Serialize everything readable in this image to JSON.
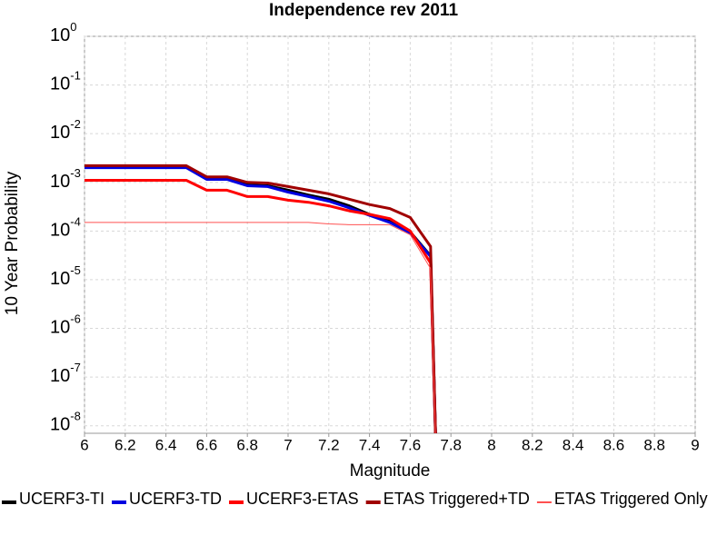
{
  "chart_data": {
    "type": "line",
    "title": "Independence rev 2011",
    "x_label": "Magnitude",
    "y_label": "10 Year Probability",
    "log_y": true,
    "grid": true,
    "legend_position": "bottom",
    "xlim": [
      6,
      9
    ],
    "xticks": [
      6,
      6.2,
      6.4,
      6.6,
      6.8,
      7,
      7.2,
      7.4,
      7.6,
      7.8,
      8,
      8.2,
      8.4,
      8.6,
      8.8,
      9
    ],
    "ylim": [
      7e-09,
      1
    ],
    "yticks": [
      {
        "value": 1,
        "label": "10^0"
      },
      {
        "value": 0.1,
        "label": "10^-1"
      },
      {
        "value": 0.01,
        "label": "10^-2"
      },
      {
        "value": 0.001,
        "label": "10^-3"
      },
      {
        "value": 0.0001,
        "label": "10^-4"
      },
      {
        "value": 1e-05,
        "label": "10^-5"
      },
      {
        "value": 1e-06,
        "label": "10^-6"
      },
      {
        "value": 1e-07,
        "label": "10^-7"
      },
      {
        "value": 1e-08,
        "label": "10^-8"
      }
    ],
    "x": [
      6.0,
      6.1,
      6.2,
      6.3,
      6.4,
      6.5,
      6.6,
      6.7,
      6.8,
      6.9,
      7.0,
      7.1,
      7.2,
      7.3,
      7.4,
      7.5,
      7.6,
      7.7,
      7.73
    ],
    "series": [
      {
        "name": "UCERF3-TI",
        "color": "#000000",
        "line_width": 3,
        "values": [
          0.0021,
          0.0021,
          0.0021,
          0.0021,
          0.0021,
          0.0021,
          0.0012,
          0.0012,
          0.00089,
          0.00085,
          0.00069,
          0.00055,
          0.00045,
          0.00033,
          0.00022,
          0.00017,
          9.6e-05,
          3.1e-05,
          1e-09
        ]
      },
      {
        "name": "UCERF3-TD",
        "color": "#0000e0",
        "line_width": 3,
        "values": [
          0.002,
          0.002,
          0.002,
          0.002,
          0.002,
          0.002,
          0.00115,
          0.00115,
          0.00085,
          0.00082,
          0.00063,
          0.00051,
          0.00041,
          0.0003,
          0.00021,
          0.00015,
          9.2e-05,
          3e-05,
          1e-09
        ]
      },
      {
        "name": "UCERF3-ETAS",
        "color": "#ff0000",
        "line_width": 3,
        "values": [
          0.0011,
          0.0011,
          0.0011,
          0.0011,
          0.0011,
          0.0011,
          0.00069,
          0.00069,
          0.00051,
          0.00051,
          0.00043,
          0.00039,
          0.00033,
          0.00026,
          0.00022,
          0.00018,
          0.0001,
          2.2e-05,
          1e-09
        ]
      },
      {
        "name": "ETAS Triggered+TD",
        "color": "#a00000",
        "line_width": 3,
        "values": [
          0.0022,
          0.0022,
          0.0022,
          0.0022,
          0.0022,
          0.0022,
          0.0013,
          0.0013,
          0.001,
          0.00097,
          0.00082,
          0.00069,
          0.00058,
          0.00045,
          0.00035,
          0.00029,
          0.00019,
          4.8e-05,
          1e-09
        ]
      },
      {
        "name": "ETAS Triggered Only",
        "color": "#ff5050",
        "line_width": 1,
        "values": [
          0.00015,
          0.00015,
          0.00015,
          0.00015,
          0.00015,
          0.00015,
          0.00015,
          0.00015,
          0.00015,
          0.00015,
          0.00015,
          0.00015,
          0.00014,
          0.000135,
          0.000135,
          0.000135,
          8.4e-05,
          1.7e-05,
          1e-09
        ]
      }
    ]
  }
}
